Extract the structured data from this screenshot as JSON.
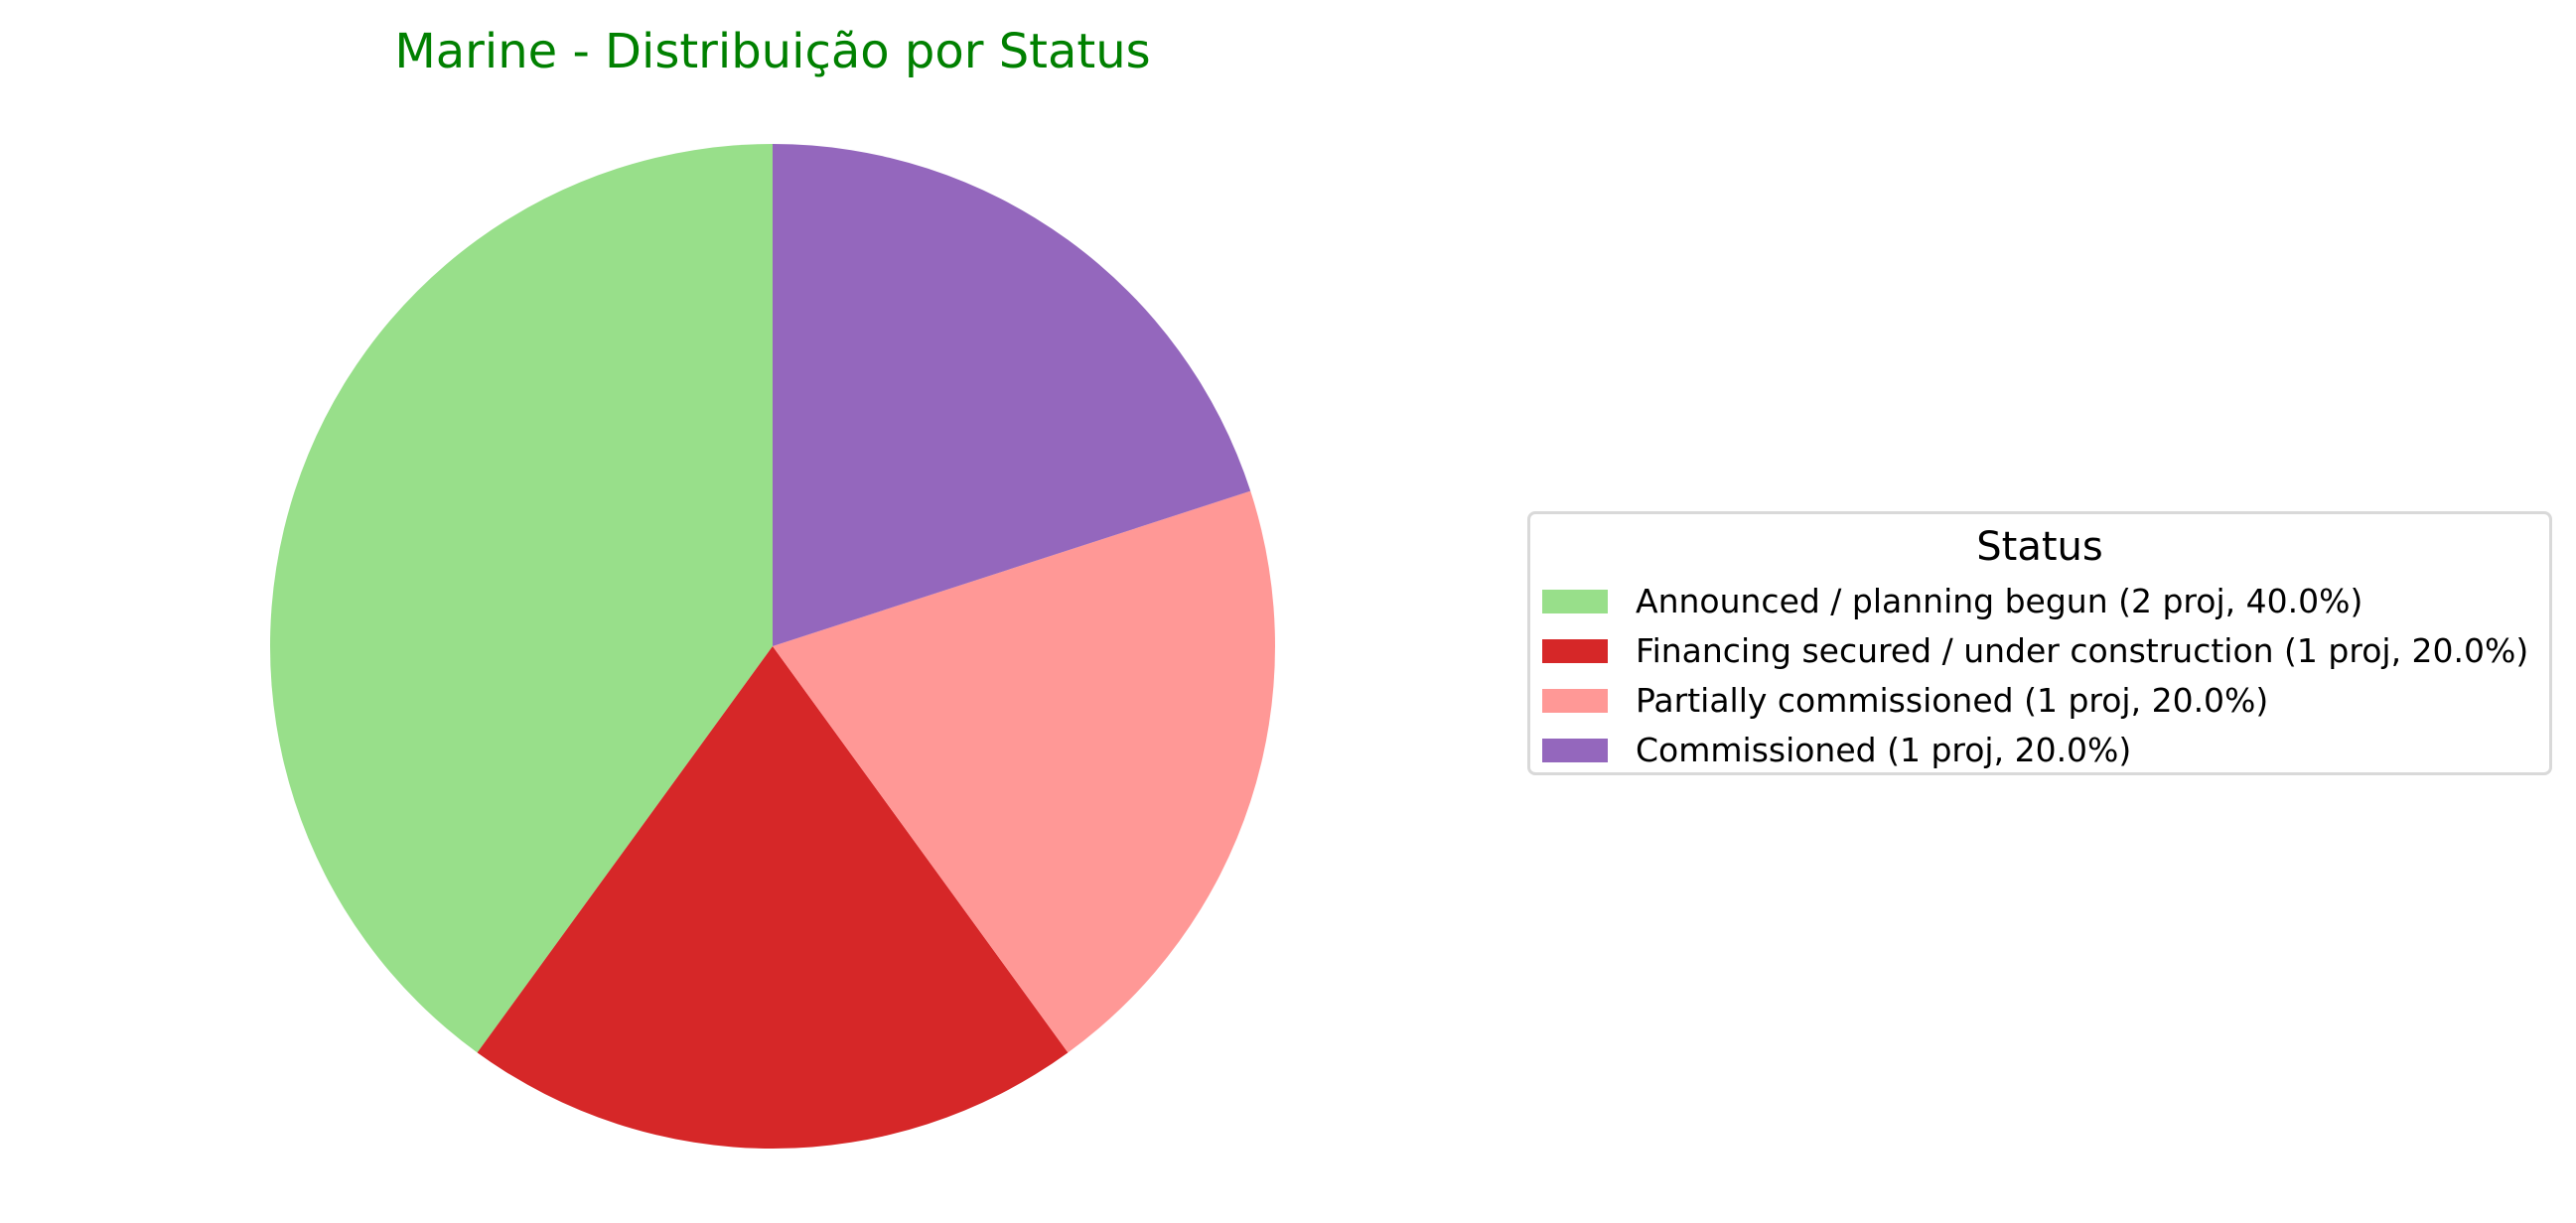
{
  "chart_data": {
    "type": "pie",
    "title": "Marine - Distribuição por Status",
    "title_color": "#008000",
    "slices": [
      {
        "label": "Announced / planning begun",
        "value": 2,
        "legend_text": "Announced / planning begun (2 proj, 40.0%)",
        "color": "#98df8a"
      },
      {
        "label": "Financing secured / under construction",
        "value": 1,
        "legend_text": "Financing secured / under construction (1 proj, 20.0%)",
        "color": "#d62728"
      },
      {
        "label": "Partially commissioned",
        "value": 1,
        "legend_text": "Partially commissioned (1 proj, 20.0%)",
        "color": "#ff9896"
      },
      {
        "label": "Commissioned",
        "value": 1,
        "legend_text": "Commissioned (1 proj, 20.0%)",
        "color": "#9467bd"
      }
    ],
    "start_angle_deg": 90,
    "direction": "counterclockwise",
    "legend": {
      "title": "Status",
      "placement": "right"
    }
  }
}
